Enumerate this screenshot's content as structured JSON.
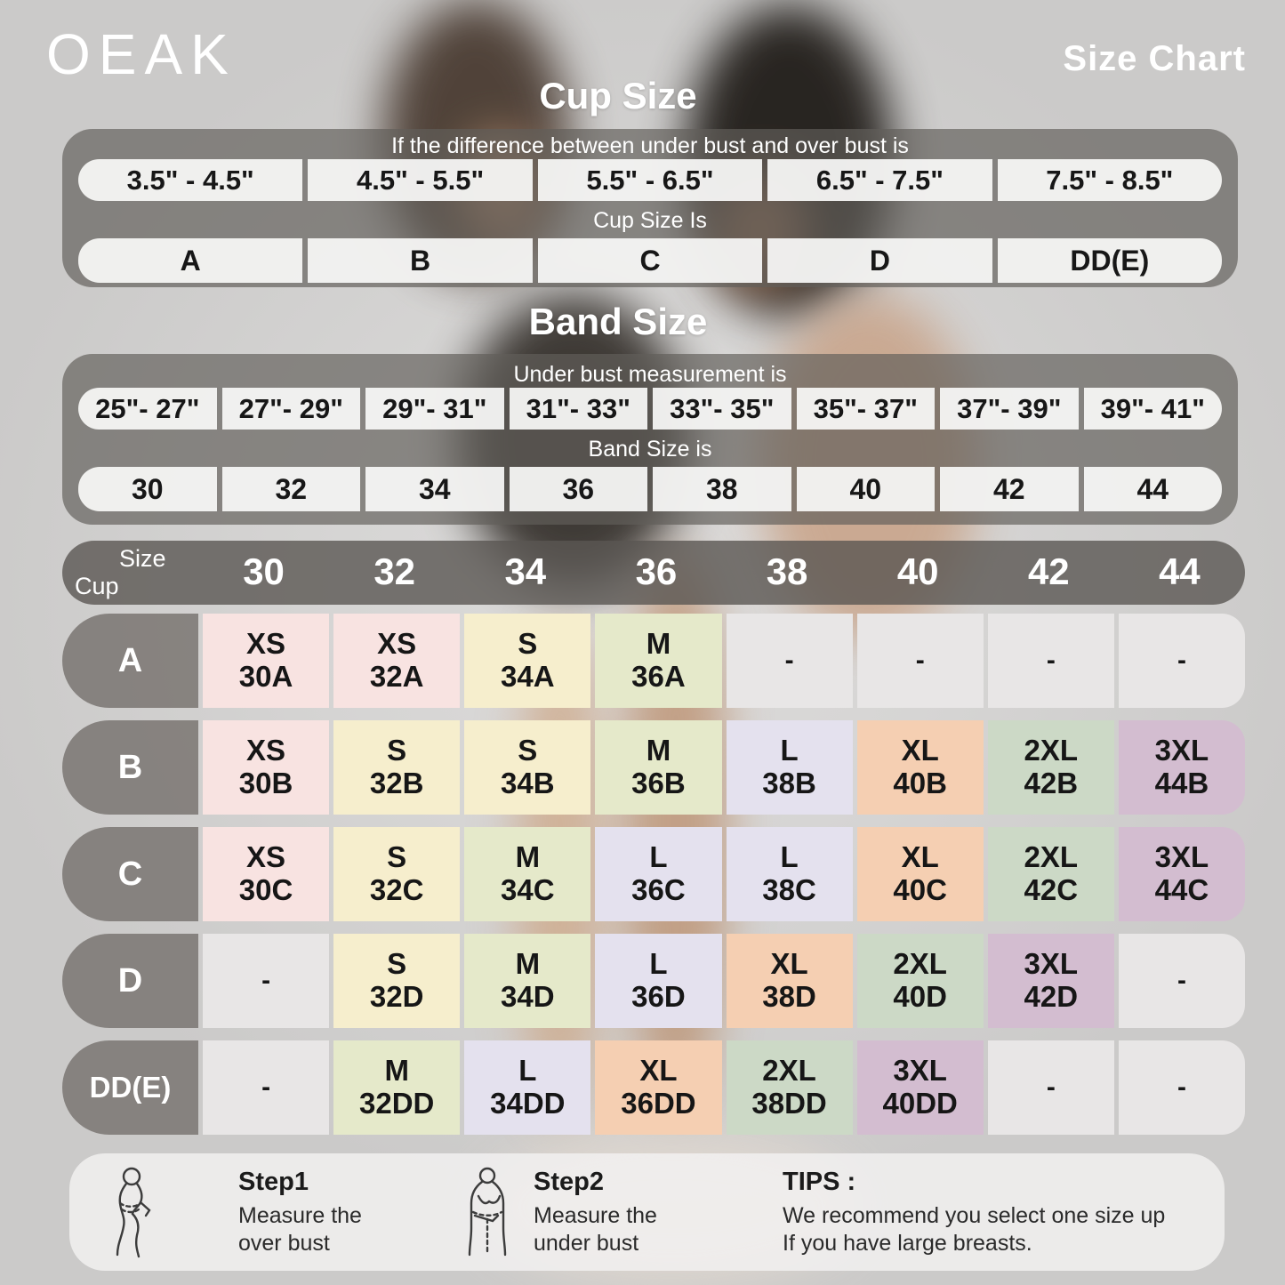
{
  "brand": "OEAK",
  "page_title": "Size Chart",
  "cup_section": {
    "title": "Cup Size",
    "condition": "If the  difference between under bust and over bust is",
    "ranges": [
      "3.5\" - 4.5\"",
      "4.5\" - 5.5\"",
      "5.5\" - 6.5\"",
      "6.5\" - 7.5\"",
      "7.5\" - 8.5\""
    ],
    "result_label": "Cup Size Is",
    "values": [
      "A",
      "B",
      "C",
      "D",
      "DD(E)"
    ]
  },
  "band_section": {
    "title": "Band Size",
    "condition": "Under bust measurement is",
    "ranges": [
      "25\"- 27\"",
      "27\"- 29\"",
      "29\"- 31\"",
      "31\"- 33\"",
      "33\"- 35\"",
      "35\"- 37\"",
      "37\"- 39\"",
      "39\"- 41\""
    ],
    "result_label": "Band Size is",
    "values": [
      "30",
      "32",
      "34",
      "36",
      "38",
      "40",
      "42",
      "44"
    ]
  },
  "size_matrix": {
    "corner_top": "Size",
    "corner_bottom": "Cup",
    "columns": [
      "30",
      "32",
      "34",
      "36",
      "38",
      "40",
      "42",
      "44"
    ],
    "rows": [
      {
        "label": "A",
        "cells": [
          {
            "size": "XS",
            "code": "30A",
            "color": "pink"
          },
          {
            "size": "XS",
            "code": "32A",
            "color": "pink"
          },
          {
            "size": "S",
            "code": "34A",
            "color": "cream"
          },
          {
            "size": "M",
            "code": "36A",
            "color": "green"
          },
          {
            "size": "-",
            "code": "",
            "color": "empty"
          },
          {
            "size": "-",
            "code": "",
            "color": "empty"
          },
          {
            "size": "-",
            "code": "",
            "color": "empty"
          },
          {
            "size": "-",
            "code": "",
            "color": "empty"
          }
        ]
      },
      {
        "label": "B",
        "cells": [
          {
            "size": "XS",
            "code": "30B",
            "color": "pink"
          },
          {
            "size": "S",
            "code": "32B",
            "color": "cream"
          },
          {
            "size": "S",
            "code": "34B",
            "color": "cream"
          },
          {
            "size": "M",
            "code": "36B",
            "color": "green"
          },
          {
            "size": "L",
            "code": "38B",
            "color": "lavender"
          },
          {
            "size": "XL",
            "code": "40B",
            "color": "peach"
          },
          {
            "size": "2XL",
            "code": "42B",
            "color": "sage"
          },
          {
            "size": "3XL",
            "code": "44B",
            "color": "mauve"
          }
        ]
      },
      {
        "label": "C",
        "cells": [
          {
            "size": "XS",
            "code": "30C",
            "color": "pink"
          },
          {
            "size": "S",
            "code": "32C",
            "color": "cream"
          },
          {
            "size": "M",
            "code": "34C",
            "color": "green"
          },
          {
            "size": "L",
            "code": "36C",
            "color": "lavender"
          },
          {
            "size": "L",
            "code": "38C",
            "color": "lavender"
          },
          {
            "size": "XL",
            "code": "40C",
            "color": "peach"
          },
          {
            "size": "2XL",
            "code": "42C",
            "color": "sage"
          },
          {
            "size": "3XL",
            "code": "44C",
            "color": "mauve"
          }
        ]
      },
      {
        "label": "D",
        "cells": [
          {
            "size": "-",
            "code": "",
            "color": "empty"
          },
          {
            "size": "S",
            "code": "32D",
            "color": "cream"
          },
          {
            "size": "M",
            "code": "34D",
            "color": "green"
          },
          {
            "size": "L",
            "code": "36D",
            "color": "lavender"
          },
          {
            "size": "XL",
            "code": "38D",
            "color": "peach"
          },
          {
            "size": "2XL",
            "code": "40D",
            "color": "sage"
          },
          {
            "size": "3XL",
            "code": "42D",
            "color": "mauve"
          },
          {
            "size": "-",
            "code": "",
            "color": "empty"
          }
        ]
      },
      {
        "label": "DD(E)",
        "cells": [
          {
            "size": "-",
            "code": "",
            "color": "empty"
          },
          {
            "size": "M",
            "code": "32DD",
            "color": "green"
          },
          {
            "size": "L",
            "code": "34DD",
            "color": "lavender"
          },
          {
            "size": "XL",
            "code": "36DD",
            "color": "peach"
          },
          {
            "size": "2XL",
            "code": "38DD",
            "color": "sage"
          },
          {
            "size": "3XL",
            "code": "40DD",
            "color": "mauve"
          },
          {
            "size": "-",
            "code": "",
            "color": "empty"
          },
          {
            "size": "-",
            "code": "",
            "color": "empty"
          }
        ]
      }
    ]
  },
  "footer": {
    "steps": [
      {
        "title": "Step1",
        "line1": "Measure the",
        "line2": "over bust"
      },
      {
        "title": "Step2",
        "line1": "Measure the",
        "line2": "under bust"
      }
    ],
    "tips_title": "TIPS :",
    "tips_line1": "We recommend you select one size up",
    "tips_line2": "If you have large breasts."
  },
  "palette": {
    "pink": "#f8e3e1",
    "cream": "#f6eecd",
    "green": "#e5e9ca",
    "lavender": "#e4e1ee",
    "peach": "#f5cfb2",
    "sage": "#ccd9c6",
    "mauve": "#d3bdd0",
    "empty": "#e8e6e6",
    "panel_gray": "rgba(98,94,90,0.68)",
    "header_gray": "rgba(90,86,82,0.80)",
    "label_gray": "rgba(128,124,120,0.92)",
    "pill_white": "rgba(247,246,245,0.94)",
    "footer_white": "rgba(243,242,241,0.82)"
  },
  "chart_data": {
    "type": "table",
    "title": "OEAK bra size chart",
    "tables": [
      {
        "name": "cup-size",
        "header": "If the  difference between under bust and over bust is",
        "rows": [
          [
            "3.5\" - 4.5\"",
            "4.5\" - 5.5\"",
            "5.5\" - 6.5\"",
            "6.5\" - 7.5\"",
            "7.5\" - 8.5\""
          ],
          [
            "A",
            "B",
            "C",
            "D",
            "DD(E)"
          ]
        ]
      },
      {
        "name": "band-size",
        "header": "Under bust measurement is",
        "rows": [
          [
            "25\"- 27\"",
            "27\"- 29\"",
            "29\"- 31\"",
            "31\"- 33\"",
            "33\"- 35\"",
            "35\"- 37\"",
            "37\"- 39\"",
            "39\"- 41\""
          ],
          [
            "30",
            "32",
            "34",
            "36",
            "38",
            "40",
            "42",
            "44"
          ]
        ]
      },
      {
        "name": "size-matrix",
        "columns": [
          "30",
          "32",
          "34",
          "36",
          "38",
          "40",
          "42",
          "44"
        ],
        "rows": [
          [
            "A",
            "XS 30A",
            "XS 32A",
            "S 34A",
            "M 36A",
            "-",
            "-",
            "-",
            "-"
          ],
          [
            "B",
            "XS 30B",
            "S 32B",
            "S 34B",
            "M 36B",
            "L 38B",
            "XL 40B",
            "2XL 42B",
            "3XL 44B"
          ],
          [
            "C",
            "XS 30C",
            "S 32C",
            "M 34C",
            "L 36C",
            "L 38C",
            "XL 40C",
            "2XL 42C",
            "3XL 44C"
          ],
          [
            "D",
            "-",
            "S 32D",
            "M 34D",
            "L 36D",
            "XL 38D",
            "2XL 40D",
            "3XL 42D",
            "-"
          ],
          [
            "DD(E)",
            "-",
            "M 32DD",
            "L 34DD",
            "XL 36DD",
            "2XL 38DD",
            "3XL 40DD",
            "-",
            "-"
          ]
        ]
      }
    ]
  }
}
